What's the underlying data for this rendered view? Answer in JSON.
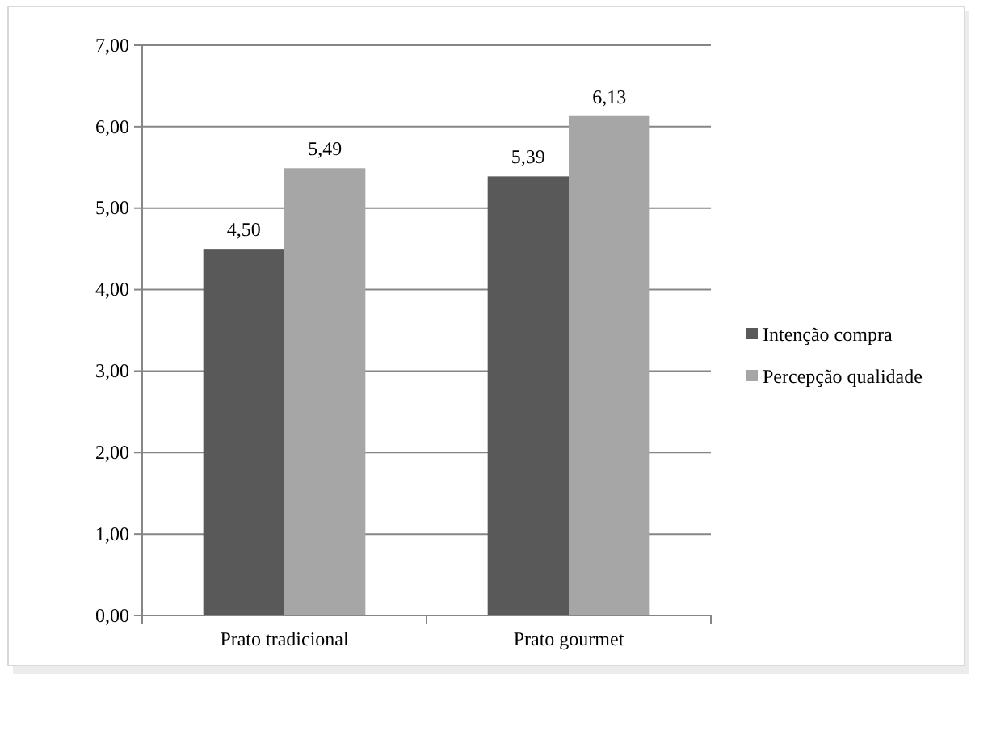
{
  "chart_data": {
    "type": "bar",
    "categories": [
      "Prato tradicional",
      "Prato gourmet"
    ],
    "series": [
      {
        "name": "Intenção compra",
        "color": "#595959",
        "values": [
          4.5,
          5.39
        ],
        "value_labels": [
          "4,50",
          "5,39"
        ]
      },
      {
        "name": "Percepção qualidade",
        "color": "#a6a6a6",
        "values": [
          5.49,
          6.13
        ],
        "value_labels": [
          "5,49",
          "6,13"
        ]
      }
    ],
    "ylim": [
      0,
      7
    ],
    "yticks": [
      {
        "value": 0,
        "label": "0,00"
      },
      {
        "value": 1,
        "label": "1,00"
      },
      {
        "value": 2,
        "label": "2,00"
      },
      {
        "value": 3,
        "label": "3,00"
      },
      {
        "value": 4,
        "label": "4,00"
      },
      {
        "value": 5,
        "label": "5,00"
      },
      {
        "value": 6,
        "label": "6,00"
      },
      {
        "value": 7,
        "label": "7,00"
      }
    ],
    "grid": "y",
    "legend": "right"
  }
}
